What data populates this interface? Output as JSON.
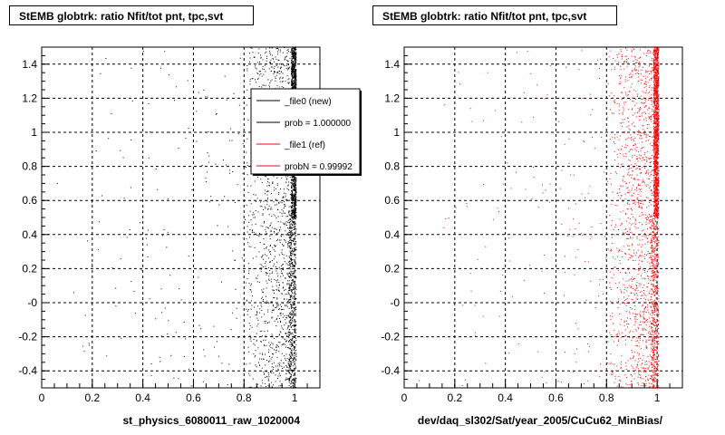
{
  "chart_data": [
    {
      "type": "scatter",
      "title": "StEMB globtrk: ratio Nfit/tot pnt, tpc,svt",
      "xlabel": "st_physics_6080011_raw_1020004",
      "ylabel": "",
      "xlim": [
        0,
        1.1
      ],
      "ylim": [
        -0.5,
        1.5
      ],
      "x_ticks": [
        "0",
        "0.2",
        "0.4",
        "0.6",
        "0.8",
        "1"
      ],
      "y_ticks": [
        "-0.4",
        "-0.2",
        "-0",
        "0.2",
        "0.4",
        "0.6",
        "0.8",
        "1",
        "1.2",
        "1.4"
      ],
      "grid": true,
      "marker_color": "#000000",
      "series": [
        {
          "name": "_file0 (new)",
          "description_points": "dense band near x=1, scattered points for x in 0.8-1, sparse points below 0.8"
        }
      ],
      "legend": {
        "placement": "top-right",
        "entries": [
          {
            "label": "_file0 (new)",
            "color": "#000000"
          },
          {
            "label": "prob = 1.000000",
            "color": "#000000"
          },
          {
            "label": "_file1 (ref)",
            "color": "#ff0000"
          },
          {
            "label": "probN = 0.99992",
            "color": "#ff0000"
          }
        ]
      }
    },
    {
      "type": "scatter",
      "title": "StEMB globtrk: ratio Nfit/tot pnt, tpc,svt",
      "xlabel": "dev/daq_sl302/Sat/year_2005/CuCu62_MinBias/",
      "ylabel": "",
      "xlim": [
        0,
        1.1
      ],
      "ylim": [
        -0.5,
        1.5
      ],
      "x_ticks": [
        "0",
        "0.2",
        "0.4",
        "0.6",
        "0.8",
        "1"
      ],
      "y_ticks": [
        "-0.4",
        "-0.2",
        "-0",
        "0.2",
        "0.4",
        "0.6",
        "0.8",
        "1",
        "1.2",
        "1.4"
      ],
      "grid": true,
      "marker_color": "#ff0000",
      "series": [
        {
          "name": "_file1 (ref)"
        }
      ]
    }
  ]
}
